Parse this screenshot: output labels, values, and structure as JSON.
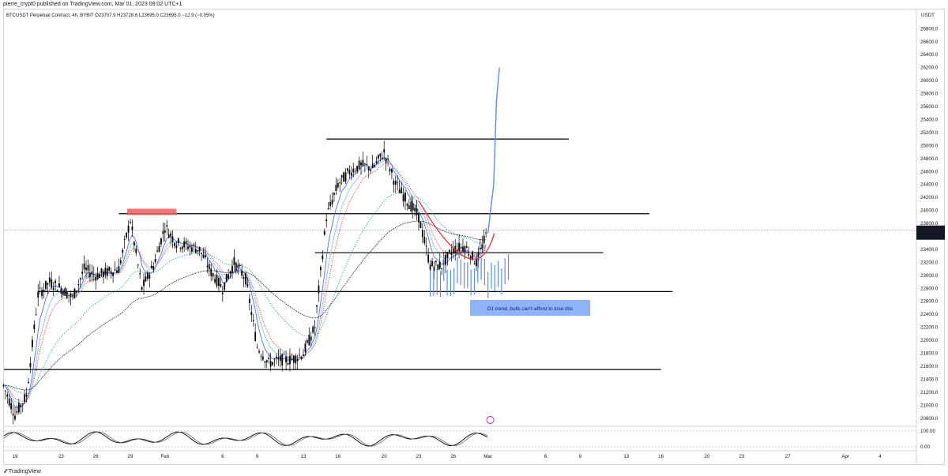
{
  "header": {
    "published": "pierre_crypt0 published on TradingView.com, Mar 01, 2023 09:02 UTC+1"
  },
  "legend": {
    "line": "BTCUSDT Perpetual Contract, 4h, BYBIT  O23707.9  H23728.6  L23695.0  C23695.0  −12.9 (−0.05%)"
  },
  "footer": {
    "brand": "TradingView"
  },
  "colors": {
    "candles": "#000000",
    "projection": "#5b8def",
    "ema_fast": "#5b6cf0",
    "ema_mid": "#4ea8ff",
    "ema_red": "#e53935",
    "ema_green": "#26a69a",
    "ema_slow": "#000000",
    "resistance_zone": "#f05a5a",
    "annotation_box": "#8fb3f9"
  },
  "chart_data": {
    "type": "line",
    "symbol": "BTCUSDT Perpetual Contract",
    "timeframe": "4h",
    "exchange": "BYBIT",
    "y_axis_unit": "USDT",
    "ylim": [
      20700,
      26950
    ],
    "y_ticks": [
      20800,
      21000,
      21200,
      21400,
      21600,
      21800,
      22000,
      22200,
      22400,
      22600,
      22800,
      23000,
      23200,
      23400,
      23600,
      23800,
      24000,
      24200,
      24400,
      24600,
      24800,
      25000,
      25200,
      25400,
      25600,
      25800,
      26000,
      26200,
      26400,
      26600,
      26800
    ],
    "y_tick_labels": [
      "20800.0",
      "21000.0",
      "21200.0",
      "21400.0",
      "21600.0",
      "21800.0",
      "22000.0",
      "22200.0",
      "22400.0",
      "22600.0",
      "22800.0",
      "23000.0",
      "23200.0",
      "23400.0",
      "23600.0",
      "23800.0",
      "24000.0",
      "24200.0",
      "24400.0",
      "24600.0",
      "24800.0",
      "25000.0",
      "25200.0",
      "25400.0",
      "25600.0",
      "25800.0",
      "26000.0",
      "26200.0",
      "26400.0",
      "26600.0",
      "26800.0"
    ],
    "x_ticks": [
      "19",
      "23",
      "26",
      "29",
      "Feb",
      "6",
      "9",
      "13",
      "16",
      "20",
      "23",
      "26",
      "Mar",
      "6",
      "9",
      "13",
      "16",
      "20",
      "23",
      "27",
      "Apr",
      "4"
    ],
    "last_price": {
      "value": 23695.0,
      "label": "23695.0",
      "countdown": "03:57:37"
    },
    "price_path": [
      [
        "2023-01-18",
        21300
      ],
      [
        "2023-01-19",
        20850
      ],
      [
        "2023-01-20",
        21150
      ],
      [
        "2023-01-21",
        22700
      ],
      [
        "2023-01-22",
        22900
      ],
      [
        "2023-01-23",
        22800
      ],
      [
        "2023-01-24",
        22650
      ],
      [
        "2023-01-25",
        23100
      ],
      [
        "2023-01-26",
        23000
      ],
      [
        "2023-01-27",
        23050
      ],
      [
        "2023-01-28",
        23100
      ],
      [
        "2023-01-29",
        23850
      ],
      [
        "2023-01-30",
        22800
      ],
      [
        "2023-01-31",
        23150
      ],
      [
        "2023-02-01",
        23750
      ],
      [
        "2023-02-02",
        23500
      ],
      [
        "2023-02-03",
        23450
      ],
      [
        "2023-02-04",
        23400
      ],
      [
        "2023-02-05",
        23050
      ],
      [
        "2023-02-06",
        22800
      ],
      [
        "2023-02-07",
        23200
      ],
      [
        "2023-02-08",
        22950
      ],
      [
        "2023-02-09",
        21900
      ],
      [
        "2023-02-10",
        21650
      ],
      [
        "2023-02-11",
        21700
      ],
      [
        "2023-02-12",
        21700
      ],
      [
        "2023-02-13",
        21800
      ],
      [
        "2023-02-14",
        22200
      ],
      [
        "2023-02-15",
        23900
      ],
      [
        "2023-02-16",
        24400
      ],
      [
        "2023-02-17",
        24600
      ],
      [
        "2023-02-18",
        24700
      ],
      [
        "2023-02-19",
        24650
      ],
      [
        "2023-02-20",
        24900
      ],
      [
        "2023-02-21",
        24400
      ],
      [
        "2023-02-22",
        24150
      ],
      [
        "2023-02-23",
        23900
      ],
      [
        "2023-02-24",
        23150
      ],
      [
        "2023-02-25",
        23150
      ],
      [
        "2023-02-26",
        23400
      ],
      [
        "2023-02-27",
        23450
      ],
      [
        "2023-02-28",
        23200
      ],
      [
        "2023-03-01",
        23695
      ]
    ],
    "projection_path": [
      [
        "2023-03-01",
        23650
      ],
      [
        "2023-03-01T12",
        24400
      ],
      [
        "2023-03-01T18",
        25700
      ],
      [
        "2023-03-02",
        26200
      ]
    ],
    "horizontal_levels": [
      {
        "price": 25100,
        "from": "2023-02-15",
        "to": "2023-03-08"
      },
      {
        "price": 23950,
        "from": "2023-01-28",
        "to": "2023-03-15"
      },
      {
        "price": 23350,
        "from": "2023-02-14",
        "to": "2023-03-11"
      },
      {
        "price": 22750,
        "from": "2023-01-21",
        "to": "2023-03-17"
      },
      {
        "price": 21550,
        "from": "2023-01-18",
        "to": "2023-03-16"
      }
    ],
    "resistance_zone": {
      "from": "2023-01-29",
      "to": "2023-02-02",
      "low": 23950,
      "high": 23990
    },
    "annotation": {
      "text": "D1 trend, bulls can't afford to lose this",
      "date": "2023-02-28",
      "price": 22500
    },
    "stoch_rsi": {
      "levels": [
        100,
        0
      ],
      "level_labels": [
        "100.00",
        "0.00"
      ]
    }
  }
}
